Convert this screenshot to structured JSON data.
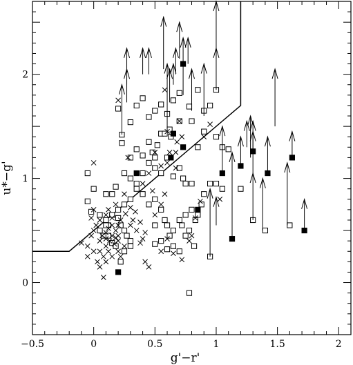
{
  "chart_data": {
    "type": "scatter",
    "xlabel": "g'−r'",
    "ylabel": "u*−g'",
    "xlim": [
      -0.5,
      2.1
    ],
    "ylim": [
      -0.5,
      2.7
    ],
    "x_ticks": [
      -0.5,
      0,
      0.5,
      1,
      1.5,
      2
    ],
    "x_tick_labels": [
      "−0.5",
      "0",
      "0.5",
      "1",
      "1.5",
      "2"
    ],
    "y_ticks": [
      0,
      1,
      2
    ],
    "y_tick_labels": [
      "0",
      "1",
      "2"
    ],
    "grid": false,
    "legend": "none",
    "colors": {
      "ink": "#000000",
      "background": "#ffffff"
    },
    "boundary_line": [
      [
        -0.5,
        0.3
      ],
      [
        -0.2,
        0.3
      ],
      [
        1.2,
        1.7
      ],
      [
        1.2,
        2.7
      ]
    ],
    "series": [
      {
        "marker": "open-square",
        "points": [
          [
            0.2,
            1.67
          ],
          [
            0.23,
            1.42
          ],
          [
            0.23,
            1.34
          ],
          [
            0.3,
            1.54
          ],
          [
            0.35,
            1.7
          ],
          [
            0.4,
            1.77
          ],
          [
            0.45,
            1.59
          ],
          [
            0.5,
            1.65
          ],
          [
            0.55,
            1.71
          ],
          [
            0.6,
            1.62
          ],
          [
            0.65,
            1.75
          ],
          [
            0.7,
            1.82
          ],
          [
            0.78,
            1.69
          ],
          [
            0.85,
            1.85
          ],
          [
            0.9,
            1.65
          ],
          [
            0.95,
            1.7
          ],
          [
            1.0,
            1.85
          ],
          [
            0.55,
            1.43
          ],
          [
            0.58,
            1.43
          ],
          [
            0.62,
            1.47
          ],
          [
            0.63,
            1.4
          ],
          [
            0.7,
            1.55
          ],
          [
            0.8,
            1.55
          ],
          [
            0.9,
            1.45
          ],
          [
            1.0,
            1.4
          ],
          [
            0.85,
            1.3
          ],
          [
            1.05,
            1.3
          ],
          [
            1.1,
            1.28
          ],
          [
            0.3,
            1.2
          ],
          [
            0.35,
            1.28
          ],
          [
            0.4,
            1.22
          ],
          [
            0.45,
            1.15
          ],
          [
            0.5,
            1.1
          ],
          [
            0.48,
            1.25
          ],
          [
            0.52,
            1.32
          ],
          [
            0.6,
            1.2
          ],
          [
            0.7,
            1.1
          ],
          [
            0.73,
            1.0
          ],
          [
            0.75,
            0.95
          ],
          [
            0.65,
            1.02
          ],
          [
            0.55,
            1.05
          ],
          [
            0.4,
            1.05
          ],
          [
            0.3,
            1.0
          ],
          [
            0.25,
            1.05
          ],
          [
            0.18,
            0.92
          ],
          [
            0.15,
            0.85
          ],
          [
            0.1,
            0.85
          ],
          [
            0.0,
            0.9
          ],
          [
            -0.05,
            1.05
          ],
          [
            -0.05,
            0.78
          ],
          [
            -0.02,
            0.68
          ],
          [
            0.05,
            0.65
          ],
          [
            0.1,
            0.6
          ],
          [
            0.12,
            0.55
          ],
          [
            0.2,
            0.62
          ],
          [
            0.22,
            0.55
          ],
          [
            0.25,
            0.5
          ],
          [
            0.27,
            0.45
          ],
          [
            0.3,
            0.4
          ],
          [
            0.3,
            0.35
          ],
          [
            0.25,
            0.3
          ],
          [
            0.22,
            0.2
          ],
          [
            0.5,
            0.55
          ],
          [
            0.55,
            0.7
          ],
          [
            0.58,
            0.6
          ],
          [
            0.6,
            0.55
          ],
          [
            0.62,
            0.45
          ],
          [
            0.65,
            0.5
          ],
          [
            0.7,
            0.6
          ],
          [
            0.72,
            0.55
          ],
          [
            0.75,
            0.65
          ],
          [
            0.8,
            0.7
          ],
          [
            0.83,
            0.6
          ],
          [
            0.85,
            0.65
          ],
          [
            0.88,
            0.75
          ],
          [
            0.9,
            0.85
          ],
          [
            0.95,
            0.95
          ],
          [
            1.0,
            0.95
          ],
          [
            1.05,
            0.9
          ],
          [
            0.8,
            0.95
          ],
          [
            0.5,
            0.8
          ],
          [
            0.45,
            0.75
          ],
          [
            0.4,
            0.85
          ],
          [
            0.35,
            0.9
          ],
          [
            0.3,
            0.8
          ],
          [
            0.25,
            0.75
          ],
          [
            0.2,
            0.7
          ],
          [
            0.15,
            0.65
          ],
          [
            0.1,
            0.55
          ],
          [
            0.08,
            0.45
          ],
          [
            0.05,
            0.5
          ],
          [
            0.12,
            0.45
          ],
          [
            0.15,
            0.38
          ],
          [
            0.18,
            0.35
          ],
          [
            0.5,
            0.37
          ],
          [
            0.55,
            0.4
          ],
          [
            0.65,
            0.35
          ],
          [
            0.75,
            0.45
          ],
          [
            0.78,
            0.5
          ],
          [
            0.82,
            0.35
          ],
          [
            0.7,
            0.3
          ],
          [
            0.6,
            0.32
          ],
          [
            1.2,
            0.9
          ],
          [
            1.3,
            0.6
          ],
          [
            1.4,
            0.5
          ],
          [
            1.6,
            0.55
          ],
          [
            0.95,
            0.25
          ],
          [
            0.78,
            -0.1
          ],
          [
            0.35,
            0.95
          ],
          [
            0.45,
            1.35
          ],
          [
            0.5,
            1.2
          ]
        ]
      },
      {
        "marker": "filled-square",
        "points": [
          [
            0.2,
            0.1
          ],
          [
            0.35,
            1.05
          ],
          [
            0.63,
            1.2
          ],
          [
            0.65,
            1.43
          ],
          [
            0.73,
            2.1
          ],
          [
            0.73,
            1.3
          ],
          [
            0.85,
            0.7
          ],
          [
            1.05,
            1.05
          ],
          [
            1.13,
            0.42
          ],
          [
            1.2,
            1.12
          ],
          [
            1.3,
            1.26
          ],
          [
            1.42,
            1.05
          ],
          [
            1.62,
            1.2
          ],
          [
            1.72,
            0.5
          ]
        ]
      },
      {
        "marker": "cross",
        "points": [
          [
            0.0,
            1.15
          ],
          [
            -0.1,
            0.38
          ],
          [
            -0.05,
            0.35
          ],
          [
            -0.02,
            0.45
          ],
          [
            0.0,
            0.5
          ],
          [
            0.02,
            0.55
          ],
          [
            0.05,
            0.4
          ],
          [
            0.07,
            0.45
          ],
          [
            0.1,
            0.35
          ],
          [
            0.12,
            0.3
          ],
          [
            0.15,
            0.25
          ],
          [
            0.05,
            0.3
          ],
          [
            0.03,
            0.2
          ],
          [
            0.08,
            0.25
          ],
          [
            0.1,
            0.2
          ],
          [
            0.15,
            0.45
          ],
          [
            0.18,
            0.5
          ],
          [
            0.2,
            0.55
          ],
          [
            0.22,
            0.6
          ],
          [
            0.1,
            0.65
          ],
          [
            0.12,
            0.7
          ],
          [
            0.15,
            0.62
          ],
          [
            0.2,
            0.4
          ],
          [
            0.25,
            0.35
          ],
          [
            0.0,
            0.7
          ],
          [
            -0.02,
            0.62
          ],
          [
            0.05,
            0.6
          ],
          [
            0.1,
            0.48
          ],
          [
            0.12,
            0.52
          ],
          [
            0.15,
            0.55
          ],
          [
            0.18,
            0.43
          ],
          [
            0.2,
            0.3
          ],
          [
            0.22,
            0.25
          ],
          [
            0.05,
            0.15
          ],
          [
            0.08,
            0.05
          ],
          [
            0.1,
            0.42
          ],
          [
            0.0,
            0.3
          ],
          [
            -0.05,
            0.25
          ],
          [
            0.13,
            0.4
          ],
          [
            0.17,
            0.37
          ],
          [
            0.2,
            0.45
          ],
          [
            0.3,
            0.55
          ],
          [
            0.32,
            0.6
          ],
          [
            0.35,
            0.5
          ],
          [
            0.4,
            0.42
          ],
          [
            0.38,
            0.38
          ],
          [
            0.42,
            0.2
          ],
          [
            0.45,
            0.15
          ],
          [
            0.5,
            0.65
          ],
          [
            0.55,
            0.75
          ],
          [
            0.58,
            0.85
          ],
          [
            0.6,
            1.15
          ],
          [
            0.62,
            1.25
          ],
          [
            0.67,
            1.1
          ],
          [
            0.7,
            1.55
          ],
          [
            0.72,
            1.4
          ],
          [
            0.55,
            1.12
          ],
          [
            0.5,
            1.25
          ],
          [
            0.45,
            1.05
          ],
          [
            0.4,
            0.95
          ],
          [
            0.28,
            1.2
          ],
          [
            0.25,
            0.85
          ],
          [
            0.18,
            0.75
          ],
          [
            0.6,
            1.45
          ],
          [
            0.68,
            1.35
          ],
          [
            0.48,
            0.88
          ],
          [
            0.72,
            0.22
          ],
          [
            0.83,
            0.62
          ],
          [
            0.87,
            0.78
          ],
          [
            1.03,
            0.8
          ],
          [
            0.55,
            0.3
          ],
          [
            0.6,
            0.42
          ],
          [
            0.3,
            0.72
          ],
          [
            0.26,
            0.66
          ],
          [
            0.34,
            0.68
          ],
          [
            0.38,
            0.58
          ],
          [
            0.42,
            0.48
          ],
          [
            0.65,
            0.28
          ],
          [
            0.78,
            0.4
          ],
          [
            0.8,
            0.45
          ],
          [
            0.2,
            1.75
          ],
          [
            0.58,
            1.85
          ],
          [
            0.67,
            1.25
          ],
          [
            0.95,
            1.52
          ],
          [
            0.9,
            1.4
          ]
        ]
      },
      {
        "marker": "upper-limit-arrow",
        "arrows": [
          [
            0.23,
            1.42,
            1.9
          ],
          [
            0.27,
            1.73,
            2.25
          ],
          [
            0.27,
            1.9,
            2.05
          ],
          [
            0.4,
            2.0,
            2.25
          ],
          [
            0.45,
            2.0,
            2.25
          ],
          [
            0.57,
            2.05,
            2.55
          ],
          [
            0.6,
            1.45,
            2.1
          ],
          [
            0.62,
            1.73,
            2.05
          ],
          [
            0.65,
            1.9,
            2.1
          ],
          [
            0.67,
            2.0,
            2.25
          ],
          [
            0.7,
            2.15,
            2.5
          ],
          [
            0.73,
            1.8,
            2.35
          ],
          [
            0.77,
            2.1,
            2.35
          ],
          [
            0.8,
            1.65,
            2.05
          ],
          [
            0.9,
            1.6,
            2.1
          ],
          [
            1.0,
            1.85,
            2.7
          ],
          [
            1.0,
            2.15,
            2.25
          ],
          [
            1.05,
            1.05,
            1.5
          ],
          [
            1.13,
            0.42,
            1.25
          ],
          [
            1.2,
            1.12,
            1.4
          ],
          [
            1.25,
            1.3,
            1.55
          ],
          [
            1.28,
            1.2,
            1.6
          ],
          [
            1.3,
            1.26,
            1.55
          ],
          [
            1.3,
            1.05,
            1.45
          ],
          [
            1.3,
            0.6,
            1.05
          ],
          [
            1.38,
            0.5,
            1.0
          ],
          [
            1.42,
            1.05,
            1.4
          ],
          [
            1.48,
            1.5,
            2.05
          ],
          [
            1.58,
            0.55,
            1.15
          ],
          [
            1.62,
            1.2,
            1.45
          ],
          [
            1.72,
            0.5,
            0.8
          ],
          [
            0.95,
            0.25,
            0.9
          ],
          [
            1.0,
            0.55,
            0.82
          ]
        ]
      }
    ]
  }
}
